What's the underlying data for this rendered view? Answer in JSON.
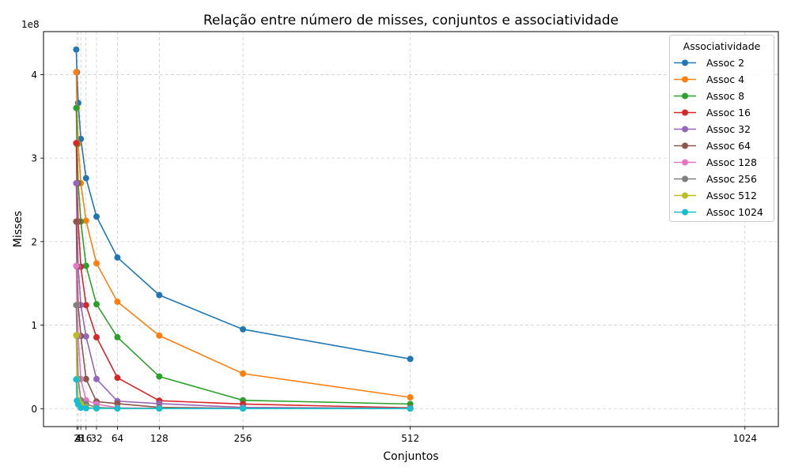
{
  "chart_data": {
    "type": "line",
    "title": "Relação entre número de misses, conjuntos e associatividade",
    "xlabel": "Conjuntos",
    "ylabel": "Misses",
    "y_offset_text": "1e8",
    "x_ticks": [
      2,
      4,
      8,
      16,
      32,
      64,
      128,
      256,
      512,
      1024
    ],
    "x_tick_labels": [
      "2",
      "4",
      "8",
      "16",
      "32",
      "64",
      "128",
      "256",
      "512",
      "1024"
    ],
    "y_ticks": [
      0,
      100000000,
      200000000,
      300000000,
      400000000
    ],
    "y_tick_labels": [
      "0",
      "1",
      "2",
      "3",
      "4"
    ],
    "xlim": [
      -49.1,
      1075.1
    ],
    "ylim": [
      -21500000,
      451500000
    ],
    "grid": true,
    "legend_title": "Associatividade",
    "legend_position": "top-right",
    "x": [
      1,
      2,
      4,
      8,
      16,
      32,
      64,
      128,
      256,
      512,
      1024
    ],
    "series": [
      {
        "name": "Assoc 2",
        "color": "#1f77b4",
        "values": [
          430000000,
          403000000,
          366000000,
          323000000,
          276000000,
          230000000,
          181000000,
          136000000,
          95000000,
          59500000,
          null
        ]
      },
      {
        "name": "Assoc 4",
        "color": "#ff7f0e",
        "values": [
          403000000,
          360000000,
          317000000,
          270000000,
          225000000,
          174000000,
          128000000,
          87500000,
          42000000,
          13500000,
          null
        ]
      },
      {
        "name": "Assoc 8",
        "color": "#2ca02c",
        "values": [
          360000000,
          317000000,
          270000000,
          224000000,
          171000000,
          125000000,
          85500000,
          38500000,
          10000000,
          5500000,
          null
        ]
      },
      {
        "name": "Assoc 16",
        "color": "#d62728",
        "values": [
          318000000,
          270000000,
          224000000,
          170000000,
          124000000,
          85500000,
          37000000,
          9500000,
          5500000,
          1000000,
          null
        ]
      },
      {
        "name": "Assoc 32",
        "color": "#9467bd",
        "values": [
          270000000,
          224000000,
          170000000,
          124000000,
          86500000,
          35500000,
          9000000,
          6000000,
          1500000,
          500000,
          null
        ]
      },
      {
        "name": "Assoc 64",
        "color": "#8c564b",
        "values": [
          224000000,
          170000000,
          124000000,
          87000000,
          35500000,
          8500000,
          6000000,
          1500000,
          500000,
          300000,
          null
        ]
      },
      {
        "name": "Assoc 128",
        "color": "#e377c2",
        "values": [
          171000000,
          124000000,
          87000000,
          35500000,
          10000000,
          5500000,
          1000000,
          500000,
          300000,
          200000,
          null
        ]
      },
      {
        "name": "Assoc 256",
        "color": "#7f7f7f",
        "values": [
          124000000,
          87000000,
          35500000,
          10000000,
          5500000,
          1500000,
          500000,
          300000,
          200000,
          100000,
          null
        ]
      },
      {
        "name": "Assoc 512",
        "color": "#bcbd22",
        "values": [
          88000000,
          35500000,
          10000000,
          5500000,
          1500000,
          500000,
          300000,
          200000,
          100000,
          100000,
          null
        ]
      },
      {
        "name": "Assoc 1024",
        "color": "#17becf",
        "values": [
          35000000,
          9500000,
          5000000,
          1000000,
          500000,
          300000,
          200000,
          100000,
          100000,
          100000,
          null
        ]
      }
    ]
  }
}
